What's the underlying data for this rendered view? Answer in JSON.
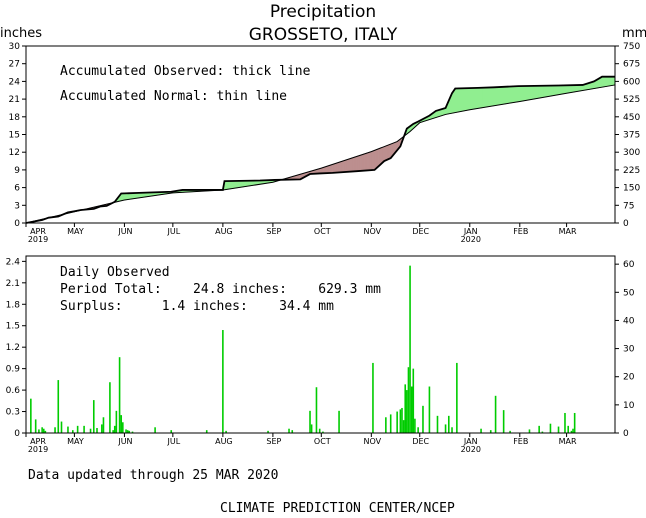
{
  "header": {
    "title": "Precipitation",
    "location": "GROSSETO, ITALY",
    "left_unit": "inches",
    "right_unit": "mm"
  },
  "footer": {
    "updated": "Data updated through 25 MAR 2020",
    "credit": "CLIMATE PREDICTION CENTER/NCEP"
  },
  "colors": {
    "surplus_fill": "#90ee90",
    "deficit_fill": "#bc8f8f",
    "bar": "#00cc00",
    "line": "#000000"
  },
  "chart_data": [
    {
      "type": "area",
      "title": "Accumulated precipitation",
      "legend": [
        "Accumulated Observed: thick line",
        "Accumulated Normal: thin line"
      ],
      "legend_placement": "top-left",
      "x_unit": "day since 1 Apr 2019",
      "month_ticks": [
        {
          "day": 0,
          "label": "APR",
          "year": "2019"
        },
        {
          "day": 30,
          "label": "MAY",
          "year": ""
        },
        {
          "day": 61,
          "label": "JUN",
          "year": ""
        },
        {
          "day": 91,
          "label": "JUL",
          "year": ""
        },
        {
          "day": 122,
          "label": "AUG",
          "year": ""
        },
        {
          "day": 153,
          "label": "SEP",
          "year": ""
        },
        {
          "day": 183,
          "label": "OCT",
          "year": ""
        },
        {
          "day": 214,
          "label": "NOV",
          "year": ""
        },
        {
          "day": 244,
          "label": "DEC",
          "year": ""
        },
        {
          "day": 275,
          "label": "JAN",
          "year": "2020"
        },
        {
          "day": 306,
          "label": "FEB",
          "year": ""
        },
        {
          "day": 335,
          "label": "MAR",
          "year": ""
        }
      ],
      "xlim": [
        0,
        365
      ],
      "ylim_left": [
        0,
        30
      ],
      "yticks_left": [
        "0",
        "3",
        "6",
        "9",
        "12",
        "15",
        "18",
        "21",
        "24",
        "27",
        "30"
      ],
      "ylim_right": [
        0,
        750
      ],
      "yticks_right": [
        "0",
        "75",
        "150",
        "225",
        "300",
        "375",
        "450",
        "525",
        "600",
        "675",
        "750"
      ],
      "series": [
        {
          "name": "Accumulated Observed",
          "line_style": "thick",
          "points": [
            [
              0,
              0
            ],
            [
              10,
              0.5
            ],
            [
              14,
              0.9
            ],
            [
              20,
              1.1
            ],
            [
              26,
              1.8
            ],
            [
              30,
              2.0
            ],
            [
              34,
              2.2
            ],
            [
              42,
              2.4
            ],
            [
              46,
              2.8
            ],
            [
              50,
              2.9
            ],
            [
              55,
              3.6
            ],
            [
              59,
              5.0
            ],
            [
              70,
              5.1
            ],
            [
              90,
              5.3
            ],
            [
              97,
              5.6
            ],
            [
              122,
              5.6
            ],
            [
              123,
              7.1
            ],
            [
              145,
              7.2
            ],
            [
              154,
              7.3
            ],
            [
              170,
              7.4
            ],
            [
              176,
              8.3
            ],
            [
              182,
              8.4
            ],
            [
              190,
              8.5
            ],
            [
              206,
              8.8
            ],
            [
              216,
              9.0
            ],
            [
              222,
              10.5
            ],
            [
              226,
              11.0
            ],
            [
              232,
              13.0
            ],
            [
              236,
              16.0
            ],
            [
              240,
              16.8
            ],
            [
              243,
              17.2
            ],
            [
              250,
              18.2
            ],
            [
              254,
              19.0
            ],
            [
              260,
              19.5
            ],
            [
              264,
              22.0
            ],
            [
              266,
              22.8
            ],
            [
              280,
              22.9
            ],
            [
              290,
              23.0
            ],
            [
              305,
              23.2
            ],
            [
              330,
              23.3
            ],
            [
              345,
              23.4
            ],
            [
              352,
              24.0
            ],
            [
              357,
              24.8
            ],
            [
              365,
              24.8
            ]
          ]
        },
        {
          "name": "Accumulated Normal",
          "line_style": "thin",
          "points": [
            [
              0,
              0
            ],
            [
              30,
              1.9
            ],
            [
              61,
              3.9
            ],
            [
              91,
              5.1
            ],
            [
              122,
              5.6
            ],
            [
              153,
              6.9
            ],
            [
              183,
              9.3
            ],
            [
              214,
              12.1
            ],
            [
              230,
              13.8
            ],
            [
              238,
              15.5
            ],
            [
              244,
              17.0
            ],
            [
              260,
              18.4
            ],
            [
              275,
              19.2
            ],
            [
              306,
              20.6
            ],
            [
              335,
              22.0
            ],
            [
              365,
              23.4
            ]
          ]
        }
      ]
    },
    {
      "type": "bar",
      "title": "Daily Observed",
      "legend_placement": "top-left",
      "period_total": "Period Total:    24.8 inches:    629.3 mm",
      "surplus": "Surplus:     1.4 inches:    34.4 mm",
      "xlim": [
        0,
        365
      ],
      "ylim_left": [
        0,
        2.475
      ],
      "yticks_left": [
        "0",
        "0.3",
        "0.6",
        "0.9",
        "1.2",
        "1.5",
        "1.8",
        "2.1",
        "2.4"
      ],
      "ylim_right": [
        0,
        62.9
      ],
      "yticks_right": [
        "0",
        "10",
        "20",
        "30",
        "40",
        "50",
        "60"
      ],
      "series": [
        {
          "name": "Daily Observed",
          "unit": "inches",
          "days": [
            3,
            6,
            8,
            10,
            11,
            12,
            18,
            20,
            22,
            26,
            29,
            32,
            36,
            40,
            42,
            44,
            47,
            48,
            52,
            54,
            55,
            56,
            58,
            59,
            60,
            62,
            63,
            64,
            66,
            80,
            90,
            112,
            122,
            124,
            150,
            163,
            165,
            176,
            177,
            180,
            182,
            184,
            194,
            215,
            223,
            226,
            230,
            232,
            233,
            234,
            235,
            236,
            237,
            238,
            239,
            240,
            241,
            243,
            246,
            250,
            255,
            260,
            262,
            264,
            267,
            282,
            288,
            291,
            296,
            300,
            312,
            318,
            320,
            325,
            330,
            334,
            336,
            338,
            339,
            340
          ],
          "values": [
            0.48,
            0.19,
            0.05,
            0.08,
            0.06,
            0.03,
            0.08,
            0.74,
            0.16,
            0.09,
            0.04,
            0.1,
            0.1,
            0.06,
            0.46,
            0.07,
            0.12,
            0.22,
            0.71,
            0.04,
            0.1,
            0.31,
            1.06,
            0.25,
            0.15,
            0.05,
            0.04,
            0.03,
            0.02,
            0.08,
            0.04,
            0.04,
            1.44,
            0.03,
            0.03,
            0.06,
            0.04,
            0.31,
            0.12,
            0.64,
            0.06,
            0.02,
            0.31,
            0.98,
            0.22,
            0.26,
            0.3,
            0.33,
            0.35,
            0.18,
            0.68,
            0.6,
            0.92,
            2.34,
            0.65,
            0.9,
            0.2,
            0.08,
            0.38,
            0.65,
            0.24,
            0.12,
            0.24,
            0.08,
            0.98,
            0.06,
            0.04,
            0.52,
            0.32,
            0.03,
            0.05,
            0.1,
            0.02,
            0.13,
            0.09,
            0.28,
            0.1,
            0.03,
            0.06,
            0.28
          ]
        }
      ]
    }
  ]
}
